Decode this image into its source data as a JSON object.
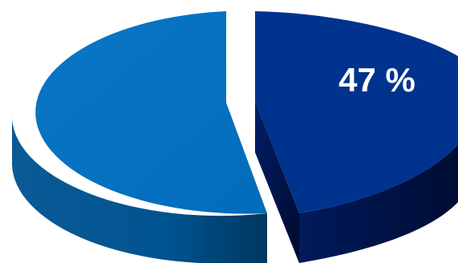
{
  "chart_data": {
    "type": "pie",
    "style": "3d-exploded",
    "slices": [
      {
        "label": "",
        "value": 47,
        "display": "47 %",
        "color": "#00338d",
        "side_color": "#001547",
        "exploded": true
      },
      {
        "label": "",
        "value": 53,
        "display": "",
        "color": "#0070c0",
        "side_color": "#004a7f",
        "exploded": true
      }
    ],
    "title": "",
    "legend": "none",
    "background": "#ffffff"
  }
}
